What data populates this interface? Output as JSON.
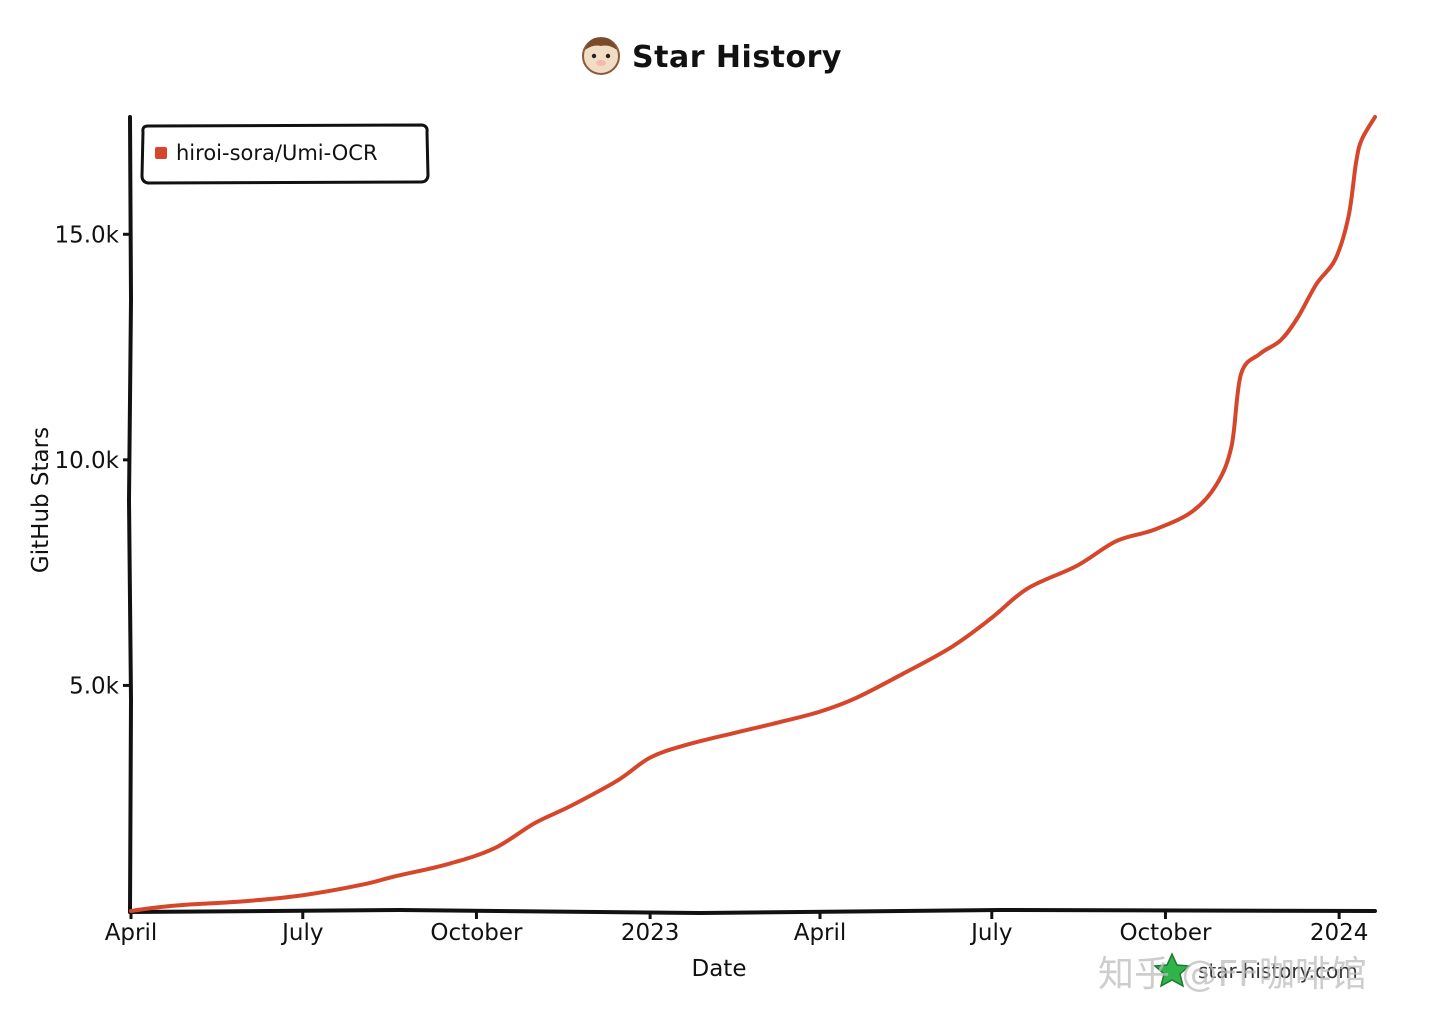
{
  "header": {
    "title": "Star History",
    "logo_icon": "hamster-avatar-icon"
  },
  "footer": {
    "site_label": "star-history.com",
    "site_icon": "star-history-logo-icon"
  },
  "watermark": {
    "text": "知乎 @FF咖啡馆"
  },
  "colors": {
    "series": "#d6462b",
    "axis": "#111111",
    "background": "#ffffff"
  },
  "chart_data": {
    "type": "line",
    "title": "Star History",
    "xlabel": "Date",
    "ylabel": "GitHub Stars",
    "x_type": "date",
    "xlim": [
      "2022-04-01",
      "2024-01-20"
    ],
    "ylim": [
      0,
      17600
    ],
    "x_ticks": [
      {
        "date": "2022-04-01",
        "label": "April"
      },
      {
        "date": "2022-07-01",
        "label": "July"
      },
      {
        "date": "2022-10-01",
        "label": "October"
      },
      {
        "date": "2023-01-01",
        "label": "2023"
      },
      {
        "date": "2023-04-01",
        "label": "April"
      },
      {
        "date": "2023-07-01",
        "label": "July"
      },
      {
        "date": "2023-10-01",
        "label": "October"
      },
      {
        "date": "2024-01-01",
        "label": "2024"
      }
    ],
    "y_ticks": [
      {
        "value": 5000,
        "label": "5.0k"
      },
      {
        "value": 10000,
        "label": "10.0k"
      },
      {
        "value": 15000,
        "label": "15.0k"
      }
    ],
    "grid": false,
    "legend_position": "top-left",
    "series": [
      {
        "name": "hiroi-sora/Umi-OCR",
        "color": "#d6462b",
        "points": [
          [
            "2022-04-01",
            0
          ],
          [
            "2022-04-15",
            80
          ],
          [
            "2022-05-01",
            140
          ],
          [
            "2022-06-01",
            220
          ],
          [
            "2022-07-01",
            350
          ],
          [
            "2022-08-01",
            580
          ],
          [
            "2022-08-20",
            780
          ],
          [
            "2022-09-15",
            1030
          ],
          [
            "2022-10-10",
            1380
          ],
          [
            "2022-11-01",
            1950
          ],
          [
            "2022-11-20",
            2330
          ],
          [
            "2022-12-15",
            2900
          ],
          [
            "2023-01-01",
            3400
          ],
          [
            "2023-01-20",
            3680
          ],
          [
            "2023-02-15",
            3950
          ],
          [
            "2023-03-10",
            4180
          ],
          [
            "2023-04-01",
            4420
          ],
          [
            "2023-04-20",
            4720
          ],
          [
            "2023-05-15",
            5260
          ],
          [
            "2023-06-10",
            5860
          ],
          [
            "2023-07-01",
            6500
          ],
          [
            "2023-07-20",
            7150
          ],
          [
            "2023-08-15",
            7650
          ],
          [
            "2023-09-05",
            8200
          ],
          [
            "2023-09-25",
            8450
          ],
          [
            "2023-10-15",
            8850
          ],
          [
            "2023-10-28",
            9450
          ],
          [
            "2023-11-05",
            10300
          ],
          [
            "2023-11-10",
            11900
          ],
          [
            "2023-11-20",
            12350
          ],
          [
            "2023-12-01",
            12650
          ],
          [
            "2023-12-10",
            13150
          ],
          [
            "2023-12-20",
            13900
          ],
          [
            "2023-12-30",
            14450
          ],
          [
            "2024-01-06",
            15400
          ],
          [
            "2024-01-10",
            16600
          ],
          [
            "2024-01-13",
            17100
          ],
          [
            "2024-01-20",
            17600
          ]
        ]
      }
    ]
  }
}
